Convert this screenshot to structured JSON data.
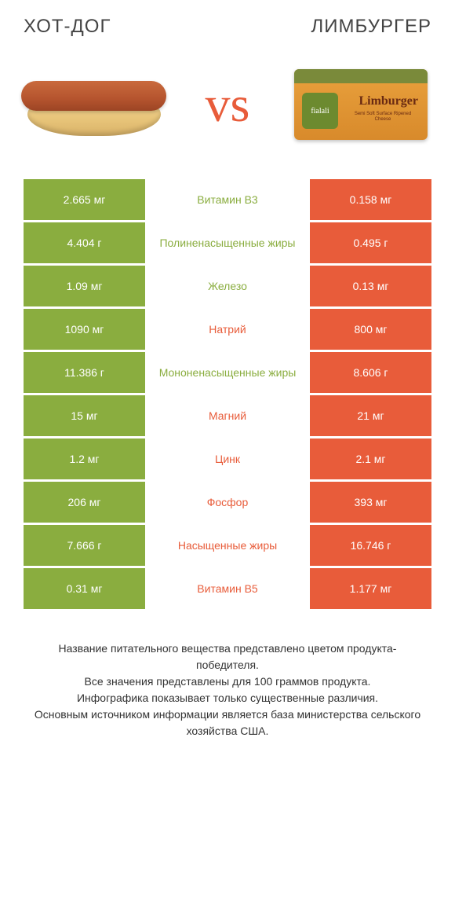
{
  "colors": {
    "left_theme": "#8aad3f",
    "right_theme": "#e85c3a",
    "background": "#ffffff",
    "text": "#333333"
  },
  "titles": {
    "left": "Хот-дог",
    "right": "Лимбургер"
  },
  "vs_label": "vs",
  "limburger_pack": {
    "badge": "fialali",
    "main": "Limburger",
    "sub": "Semi Soft Surface Ripened Cheese"
  },
  "rows": [
    {
      "label": "Витамин B3",
      "left": "2.665 мг",
      "right": "0.158 мг",
      "winner": "left"
    },
    {
      "label": "Полиненасыщенные жиры",
      "left": "4.404 г",
      "right": "0.495 г",
      "winner": "left"
    },
    {
      "label": "Железо",
      "left": "1.09 мг",
      "right": "0.13 мг",
      "winner": "left"
    },
    {
      "label": "Натрий",
      "left": "1090 мг",
      "right": "800 мг",
      "winner": "right"
    },
    {
      "label": "Мононенасыщенные жиры",
      "left": "11.386 г",
      "right": "8.606 г",
      "winner": "left"
    },
    {
      "label": "Магний",
      "left": "15 мг",
      "right": "21 мг",
      "winner": "right"
    },
    {
      "label": "Цинк",
      "left": "1.2 мг",
      "right": "2.1 мг",
      "winner": "right"
    },
    {
      "label": "Фосфор",
      "left": "206 мг",
      "right": "393 мг",
      "winner": "right"
    },
    {
      "label": "Насыщенные жиры",
      "left": "7.666 г",
      "right": "16.746 г",
      "winner": "right"
    },
    {
      "label": "Витамин B5",
      "left": "0.31 мг",
      "right": "1.177 мг",
      "winner": "right"
    }
  ],
  "footer_lines": [
    "Название питательного вещества представлено цветом продукта-победителя.",
    "Все значения представлены для 100 граммов продукта.",
    "Инфографика показывает только существенные различия.",
    "Основным источником информации является база министерства сельского хозяйства США."
  ]
}
